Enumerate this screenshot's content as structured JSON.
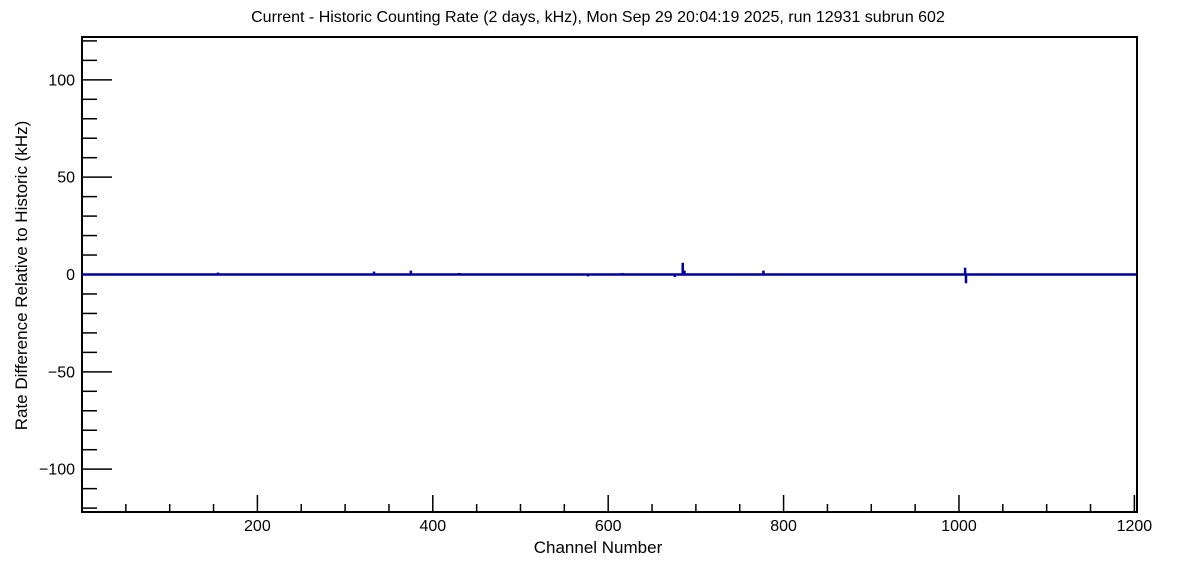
{
  "window": {
    "background": "#ffffff"
  },
  "chart_data": {
    "type": "line",
    "title": "Current - Historic Counting Rate (2 days, kHz), Mon Sep 29 20:04:19 2025, run 12931 subrun 602",
    "xlabel": "Channel Number",
    "ylabel": "Rate Difference Relative to Historic (kHz)",
    "xlim": [
      0,
      1203
    ],
    "ylim": [
      -122,
      122
    ],
    "x_major_ticks": [
      200,
      400,
      600,
      800,
      1000,
      1200
    ],
    "x_tick_labels": [
      "200",
      "400",
      "600",
      "800",
      "1000",
      "1200"
    ],
    "x_minor_step": 50,
    "y_major_ticks": [
      100,
      50,
      0,
      -50,
      -100
    ],
    "y_tick_labels": [
      "100",
      "50",
      "0",
      "−50",
      "−100"
    ],
    "y_minor_step": 10,
    "grid": false,
    "legend": null,
    "axis_color": "#000000",
    "line_color": "#0000a0",
    "baseline_value": 0,
    "series": [
      {
        "name": "rate_difference",
        "description": "Flat at 0 kHz across all channels except narrow spikes",
        "spikes": [
          {
            "channel": 155,
            "value": 1.0
          },
          {
            "channel": 333,
            "value": 1.5
          },
          {
            "channel": 375,
            "value": 2.0
          },
          {
            "channel": 430,
            "value": 0.8
          },
          {
            "channel": 577,
            "value": -1.0
          },
          {
            "channel": 616,
            "value": 0.8
          },
          {
            "channel": 676,
            "value": -1.3
          },
          {
            "channel": 685,
            "value": 6.0
          },
          {
            "channel": 687,
            "value": 2.0
          },
          {
            "channel": 777,
            "value": 2.0
          },
          {
            "channel": 1007,
            "value": 3.5
          },
          {
            "channel": 1008,
            "value": -4.5
          }
        ]
      }
    ]
  }
}
